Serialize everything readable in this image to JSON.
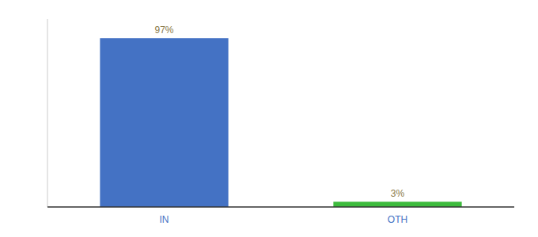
{
  "chart_data": {
    "type": "bar",
    "categories": [
      "IN",
      "OTH"
    ],
    "values": [
      97,
      3
    ],
    "value_labels": [
      "97%",
      "3%"
    ],
    "colors": [
      "#4472c4",
      "#3dbb3d"
    ],
    "ylim": [
      0,
      108
    ],
    "data_labels": true,
    "tick_labels": "x"
  }
}
